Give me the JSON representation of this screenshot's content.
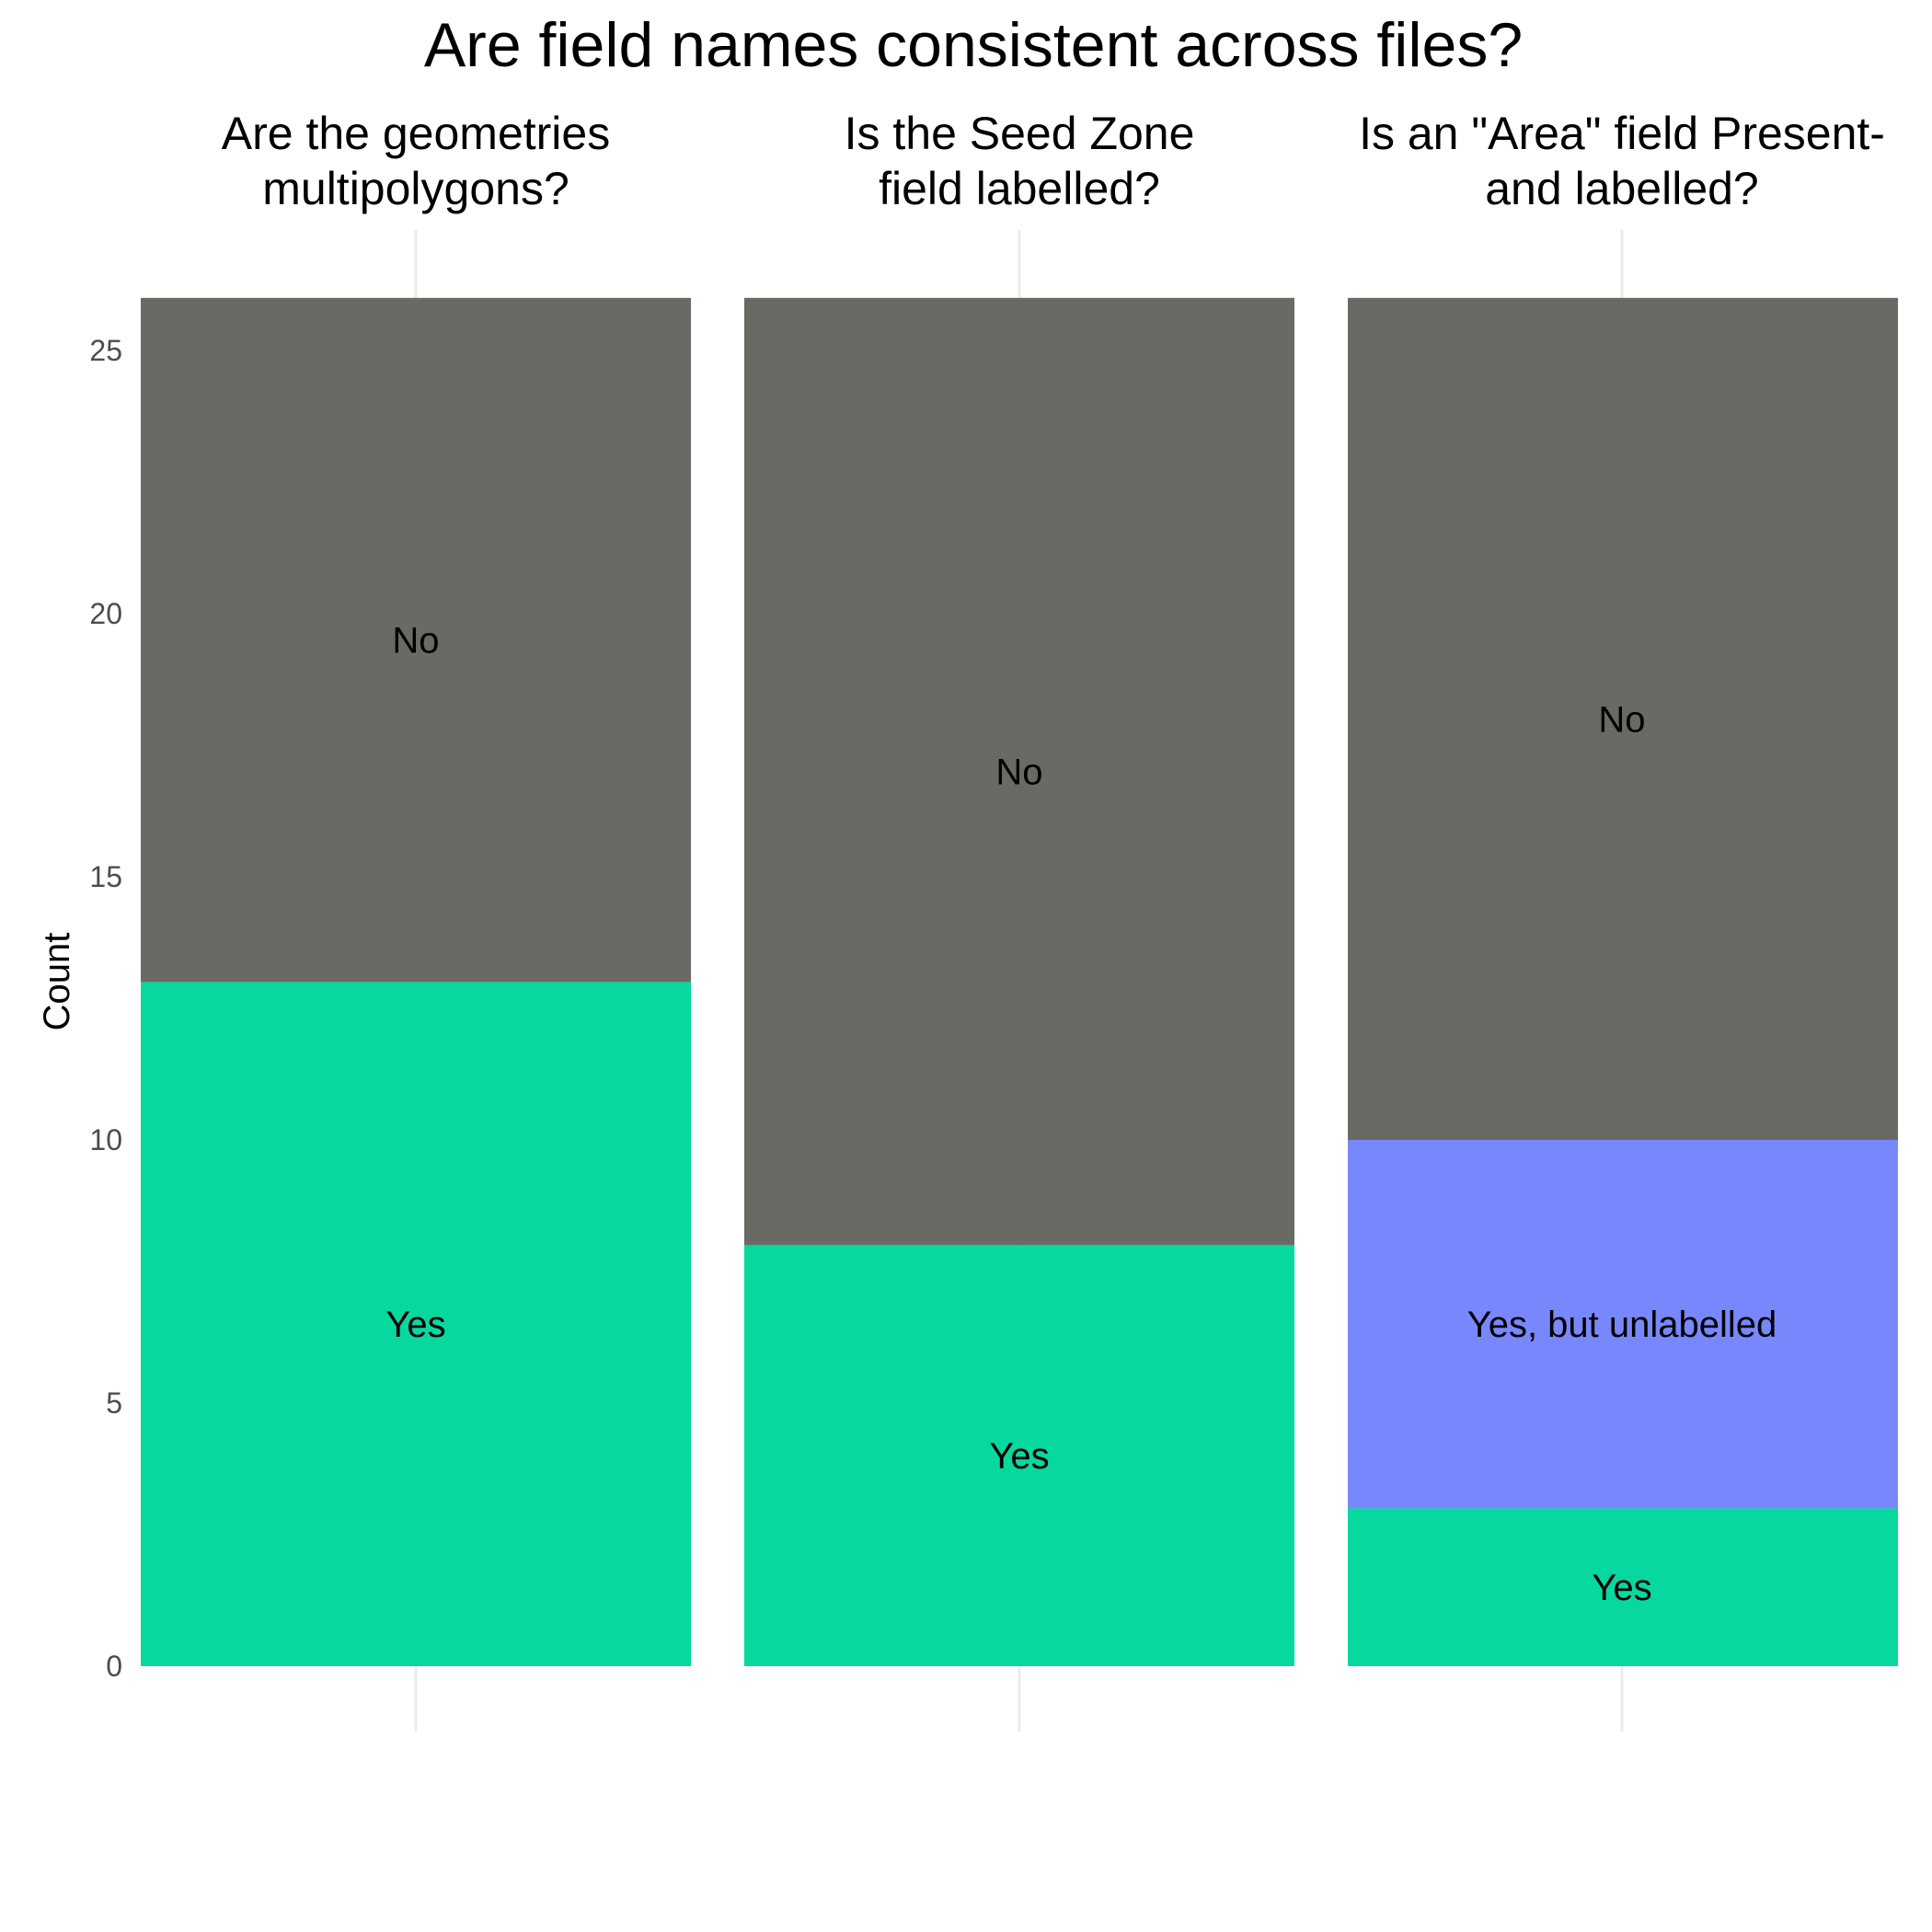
{
  "chart_data": {
    "type": "bar",
    "stacked": true,
    "title": "Are field names consistent across files?",
    "ylabel": "Count",
    "ylim": [
      0,
      26
    ],
    "yticks": [
      0,
      5,
      10,
      15,
      20,
      25
    ],
    "grid": false,
    "colors": {
      "No": "#696a63",
      "Yes": "#07d8a0",
      "Yes, but unlabelled": "#7888fc"
    },
    "facets": [
      {
        "title_lines": [
          "Are the geometries",
          "multipolygons?"
        ],
        "segments": [
          {
            "label": "Yes",
            "value": 13
          },
          {
            "label": "No",
            "value": 13
          }
        ]
      },
      {
        "title_lines": [
          "Is the Seed Zone",
          "field labelled?"
        ],
        "segments": [
          {
            "label": "Yes",
            "value": 8
          },
          {
            "label": "No",
            "value": 18
          }
        ]
      },
      {
        "title_lines": [
          "Is an \"Area\" field Present-",
          "and labelled?"
        ],
        "segments": [
          {
            "label": "Yes",
            "value": 3
          },
          {
            "label": "Yes, but unlabelled",
            "value": 7
          },
          {
            "label": "No",
            "value": 16
          }
        ]
      }
    ]
  }
}
